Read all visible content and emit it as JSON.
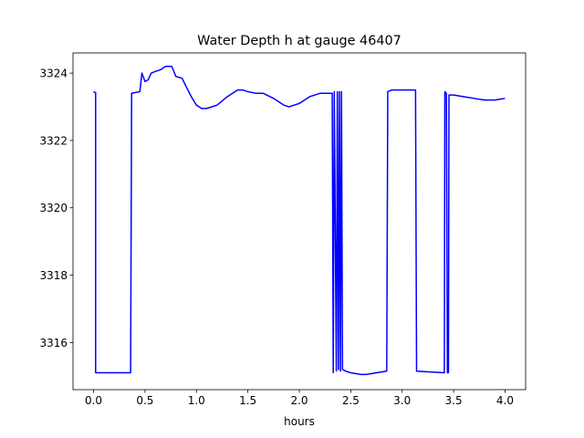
{
  "chart_data": {
    "type": "line",
    "title": "Water Depth h at gauge 46407",
    "xlabel": "hours",
    "ylabel": "",
    "xlim": [
      -0.2,
      4.2
    ],
    "ylim": [
      3314.6,
      3324.6
    ],
    "xticks": [
      0.0,
      0.5,
      1.0,
      1.5,
      2.0,
      2.5,
      3.0,
      3.5,
      4.0
    ],
    "xtick_labels": [
      "0.0",
      "0.5",
      "1.0",
      "1.5",
      "2.0",
      "2.5",
      "3.0",
      "3.5",
      "4.0"
    ],
    "yticks": [
      3316,
      3318,
      3320,
      3322,
      3324
    ],
    "ytick_labels": [
      "3316",
      "3318",
      "3320",
      "3322",
      "3324"
    ],
    "grid": false,
    "legend": "none",
    "series": [
      {
        "color": "#0000ff",
        "x": [
          0.0,
          0.02,
          0.02,
          0.36,
          0.37,
          0.45,
          0.47,
          0.5,
          0.53,
          0.56,
          0.6,
          0.65,
          0.7,
          0.76,
          0.8,
          0.86,
          0.9,
          0.95,
          1.0,
          1.05,
          1.1,
          1.2,
          1.3,
          1.4,
          1.45,
          1.5,
          1.58,
          1.65,
          1.75,
          1.85,
          1.9,
          1.95,
          2.0,
          2.1,
          2.2,
          2.32,
          2.33,
          2.34,
          2.36,
          2.37,
          2.38,
          2.39,
          2.4,
          2.41,
          2.42,
          2.45,
          2.5,
          2.6,
          2.65,
          2.75,
          2.85,
          2.86,
          2.9,
          3.0,
          3.13,
          3.14,
          3.41,
          3.415,
          3.43,
          3.44,
          3.45,
          3.455,
          3.5,
          3.6,
          3.7,
          3.8,
          3.9,
          4.0
        ],
        "y": [
          3323.45,
          3323.42,
          3315.1,
          3315.1,
          3323.4,
          3323.45,
          3324.0,
          3323.75,
          3323.8,
          3324.0,
          3324.05,
          3324.1,
          3324.2,
          3324.2,
          3323.9,
          3323.85,
          3323.6,
          3323.3,
          3323.05,
          3322.95,
          3322.95,
          3323.05,
          3323.3,
          3323.5,
          3323.5,
          3323.45,
          3323.4,
          3323.4,
          3323.25,
          3323.05,
          3323.0,
          3323.05,
          3323.1,
          3323.3,
          3323.4,
          3323.4,
          3315.1,
          3323.45,
          3315.15,
          3323.45,
          3315.2,
          3323.45,
          3315.15,
          3323.45,
          3315.2,
          3315.15,
          3315.1,
          3315.05,
          3315.05,
          3315.1,
          3315.15,
          3323.45,
          3323.5,
          3323.5,
          3323.5,
          3315.15,
          3315.1,
          3323.45,
          3323.4,
          3315.1,
          3315.1,
          3323.35,
          3323.35,
          3323.3,
          3323.25,
          3323.2,
          3323.2,
          3323.25
        ]
      }
    ]
  }
}
